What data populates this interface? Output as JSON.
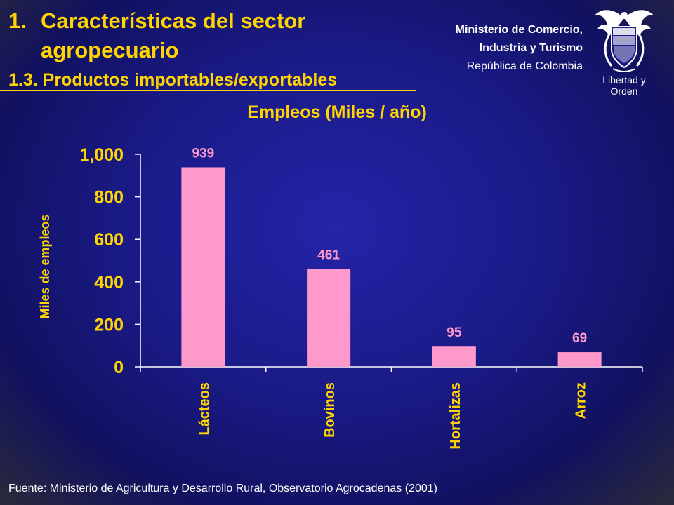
{
  "header": {
    "title_num": "1.",
    "title_line1": "Características del sector",
    "title_line2": "agropecuario",
    "subtitle": "1.3. Productos importables/exportables"
  },
  "ministry": {
    "line1": "Ministerio de Comercio,",
    "line2": "Industria y Turismo",
    "line3": "República de Colombia"
  },
  "crest": {
    "motto": "Libertad y Orden",
    "icon": "colombia-coat-of-arms"
  },
  "chart_data": {
    "type": "bar",
    "title": "Empleos (Miles / año)",
    "ylabel": "Miles de empleos",
    "xlabel": "",
    "categories": [
      "Lácteos",
      "Bovinos",
      "Hortalizas",
      "Arroz"
    ],
    "values": [
      939,
      461,
      95,
      69
    ],
    "data_labels": [
      "939",
      "461",
      "95",
      "69"
    ],
    "ylim": [
      0,
      1000
    ],
    "yticks": [
      0,
      200,
      400,
      600,
      800,
      1000
    ],
    "ytick_labels": [
      "0",
      "200",
      "400",
      "600",
      "800",
      "1,000"
    ],
    "grid": false,
    "bar_color": "#ff99cc",
    "label_color": "#ff99cc",
    "axis_text_color": "#ffd400"
  },
  "source": "Fuente: Ministerio de Agricultura y Desarrollo Rural, Observatorio Agrocadenas  (2001)"
}
